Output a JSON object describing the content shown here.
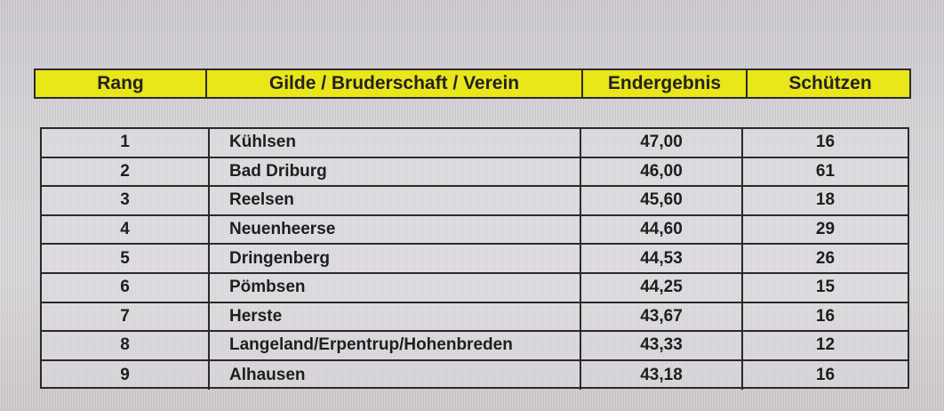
{
  "header": {
    "rank": "Rang",
    "club": "Gilde / Bruderschaft / Verein",
    "result": "Endergebnis",
    "shooters": "Schützen"
  },
  "rows": [
    {
      "rank": "1",
      "club": "Kühlsen",
      "result": "47,00",
      "shooters": "16"
    },
    {
      "rank": "2",
      "club": "Bad Driburg",
      "result": "46,00",
      "shooters": "61"
    },
    {
      "rank": "3",
      "club": "Reelsen",
      "result": "45,60",
      "shooters": "18"
    },
    {
      "rank": "4",
      "club": "Neuenheerse",
      "result": "44,60",
      "shooters": "29"
    },
    {
      "rank": "5",
      "club": "Dringenberg",
      "result": "44,53",
      "shooters": "26"
    },
    {
      "rank": "6",
      "club": "Pömbsen",
      "result": "44,25",
      "shooters": "15"
    },
    {
      "rank": "7",
      "club": "Herste",
      "result": "43,67",
      "shooters": "16"
    },
    {
      "rank": "8",
      "club": "Langeland/Erpentrup/Hohenbreden",
      "result": "43,33",
      "shooters": "12"
    },
    {
      "rank": "9",
      "club": "Alhausen",
      "result": "43,18",
      "shooters": "16"
    }
  ],
  "colors": {
    "header_bg": "#e9e61a",
    "border": "#2a2a2a",
    "screen_bg": "#d9d6da"
  }
}
